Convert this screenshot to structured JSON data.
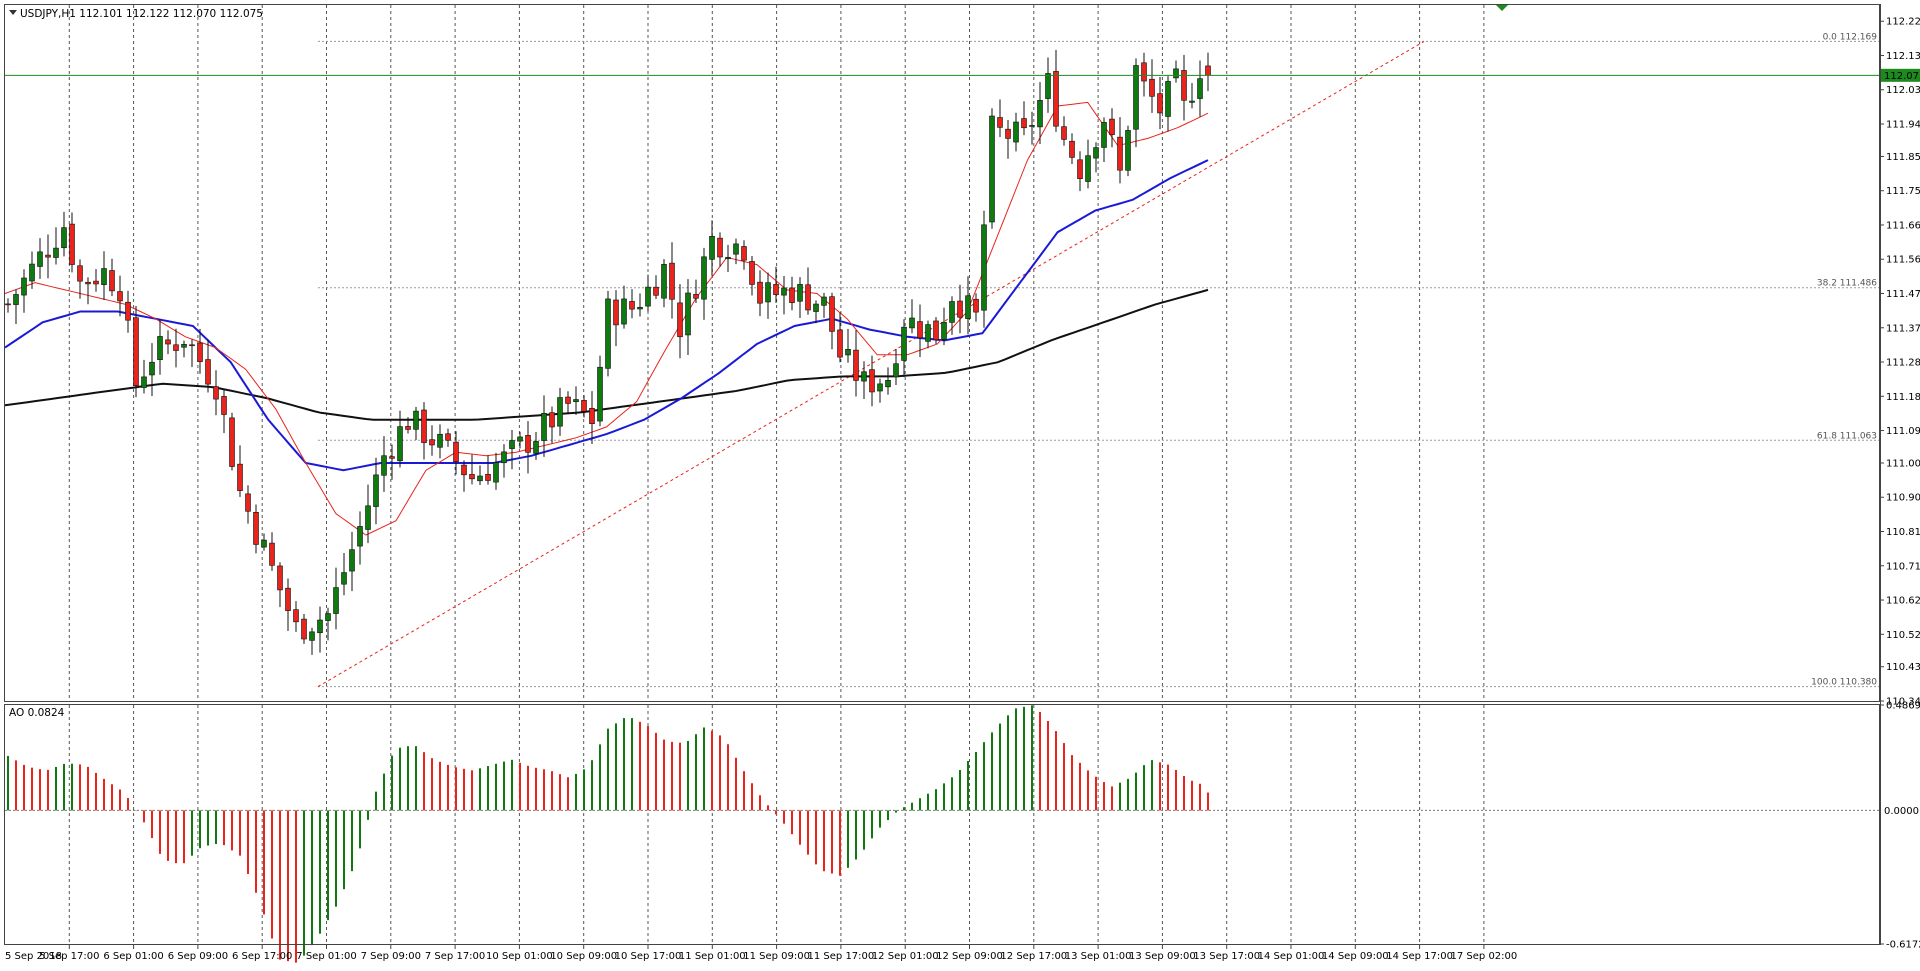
{
  "header": {
    "symbol_line": "USDJPY,H1  112.101 112.122 112.070 112.075",
    "ao_label": "AO 0.0824"
  },
  "colors": {
    "bull": "#0f7a0f",
    "bear": "#e8241c",
    "ma_fast": "#e8241c",
    "ma_mid": "#1a1ad6",
    "ma_slow": "#111111",
    "current_price_line": "#1d8a1d",
    "grid": "#555555",
    "fib_line": "#9a9a9a",
    "fib_trend": "#e8241c"
  },
  "chart_data": {
    "type": "candlestick",
    "title": "USDJPY,H1",
    "ohlc_header": {
      "open": 112.101,
      "high": 112.122,
      "low": 112.07,
      "close": 112.075
    },
    "ylim": [
      110.34,
      112.27
    ],
    "y_ticks": [
      "112.225",
      "112.130",
      "112.035",
      "111.940",
      "111.850",
      "111.755",
      "111.660",
      "111.565",
      "111.470",
      "111.375",
      "111.280",
      "111.185",
      "111.090",
      "111.000",
      "110.905",
      "110.810",
      "110.715",
      "110.620",
      "110.525",
      "110.435",
      "110.340"
    ],
    "current_price": {
      "value": 112.075,
      "label": "112.075"
    },
    "x_labels": [
      "5 Sep 2018",
      "5 Sep 17:00",
      "6 Sep 01:00",
      "6 Sep 09:00",
      "6 Sep 17:00",
      "7 Sep 01:00",
      "7 Sep 09:00",
      "7 Sep 17:00",
      "10 Sep 01:00",
      "10 Sep 09:00",
      "10 Sep 17:00",
      "11 Sep 01:00",
      "11 Sep 09:00",
      "11 Sep 17:00",
      "12 Sep 01:00",
      "12 Sep 09:00",
      "12 Sep 17:00",
      "13 Sep 01:00",
      "13 Sep 09:00",
      "13 Sep 17:00",
      "14 Sep 01:00",
      "14 Sep 09:00",
      "14 Sep 17:00",
      "17 Sep 02:00"
    ],
    "fibonacci": [
      {
        "level": "0.0",
        "label": "0.0 112.169",
        "price": 112.169
      },
      {
        "level": "38.2",
        "label": "38.2 111.486",
        "price": 111.486
      },
      {
        "level": "61.8",
        "label": "61.8 111.063",
        "price": 111.063
      },
      {
        "level": "100.0",
        "label": "100.0 110.380",
        "price": 110.38
      }
    ],
    "moving_average_anchors": {
      "fast": [
        111.47,
        111.5,
        111.48,
        111.46,
        111.44,
        111.4,
        111.35,
        111.32,
        111.26,
        111.15,
        111.0,
        110.86,
        110.8,
        110.84,
        110.98,
        111.03,
        111.02,
        111.03,
        111.05,
        111.07,
        111.1,
        111.17,
        111.32,
        111.46,
        111.57,
        111.55,
        111.48,
        111.47,
        111.4,
        111.3,
        111.3,
        111.33,
        111.42,
        111.63,
        111.84,
        111.99,
        112.0,
        111.88,
        111.9,
        111.93,
        111.97
      ],
      "mid": [
        111.32,
        111.39,
        111.42,
        111.42,
        111.4,
        111.38,
        111.28,
        111.12,
        111.0,
        110.98,
        111.0,
        111.0,
        111.0,
        111.0,
        111.02,
        111.05,
        111.08,
        111.12,
        111.18,
        111.25,
        111.33,
        111.38,
        111.4,
        111.37,
        111.35,
        111.34,
        111.36,
        111.5,
        111.64,
        111.7,
        111.73,
        111.79,
        111.84
      ],
      "slow": [
        111.16,
        111.18,
        111.2,
        111.22,
        111.21,
        111.18,
        111.14,
        111.12,
        111.12,
        111.12,
        111.13,
        111.14,
        111.16,
        111.18,
        111.2,
        111.23,
        111.24,
        111.24,
        111.25,
        111.28,
        111.34,
        111.39,
        111.44,
        111.48
      ]
    },
    "awesome_oscillator": {
      "current": 0.0824,
      "ylim": [
        -0.6172,
        0.4869
      ],
      "y_ticks": [
        "0.4869",
        "-0.6172"
      ],
      "zero_label": "0.0000",
      "anchors": [
        0.3,
        0.24,
        0.22,
        0.26,
        0.25,
        0.17,
        0.1,
        -0.06,
        -0.27,
        -0.3,
        -0.2,
        -0.18,
        -0.25,
        -0.5,
        -0.82,
        -0.84,
        -0.7,
        -0.52,
        -0.28,
        0.1,
        0.34,
        0.36,
        0.28,
        0.24,
        0.22,
        0.25,
        0.28,
        0.24,
        0.22,
        0.18,
        0.24,
        0.45,
        0.52,
        0.47,
        0.38,
        0.37,
        0.46,
        0.4,
        0.22,
        0.06,
        -0.06,
        -0.2,
        -0.33,
        -0.36,
        -0.25,
        -0.1,
        0.0,
        0.06,
        0.12,
        0.2,
        0.32,
        0.45,
        0.56,
        0.58,
        0.46,
        0.3,
        0.2,
        0.13,
        0.18,
        0.28,
        0.25,
        0.17,
        0.13
      ]
    }
  }
}
